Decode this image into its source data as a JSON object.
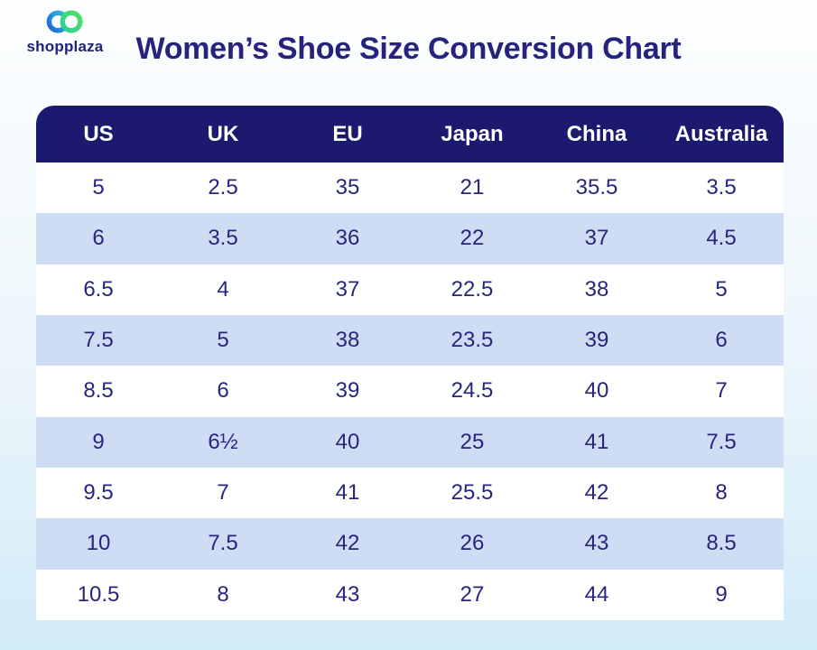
{
  "logo": {
    "label": "shopplaza"
  },
  "colors": {
    "header_bg": "#1c1a6e",
    "row_alt_bg": "#cfddf4",
    "text_navy": "#27257d",
    "title_navy": "#26237f",
    "page_top": "#fdfeff",
    "page_bottom": "#d2ebf8",
    "logo_blue": "#2a7de2",
    "logo_green": "#45d96e",
    "header_text": "#ffffff"
  },
  "chart_data": {
    "type": "table",
    "title": "Women’s Shoe Size Conversion Chart",
    "columns": [
      "US",
      "UK",
      "EU",
      "Japan",
      "China",
      "Australia"
    ],
    "rows": [
      [
        "5",
        "2.5",
        "35",
        "21",
        "35.5",
        "3.5"
      ],
      [
        "6",
        "3.5",
        "36",
        "22",
        "37",
        "4.5"
      ],
      [
        "6.5",
        "4",
        "37",
        "22.5",
        "38",
        "5"
      ],
      [
        "7.5",
        "5",
        "38",
        "23.5",
        "39",
        "6"
      ],
      [
        "8.5",
        "6",
        "39",
        "24.5",
        "40",
        "7"
      ],
      [
        "9",
        "6½",
        "40",
        "25",
        "41",
        "7.5"
      ],
      [
        "9.5",
        "7",
        "41",
        "25.5",
        "42",
        "8"
      ],
      [
        "10",
        "7.5",
        "42",
        "26",
        "43",
        "8.5"
      ],
      [
        "10.5",
        "8",
        "43",
        "27",
        "44",
        "9"
      ]
    ]
  }
}
